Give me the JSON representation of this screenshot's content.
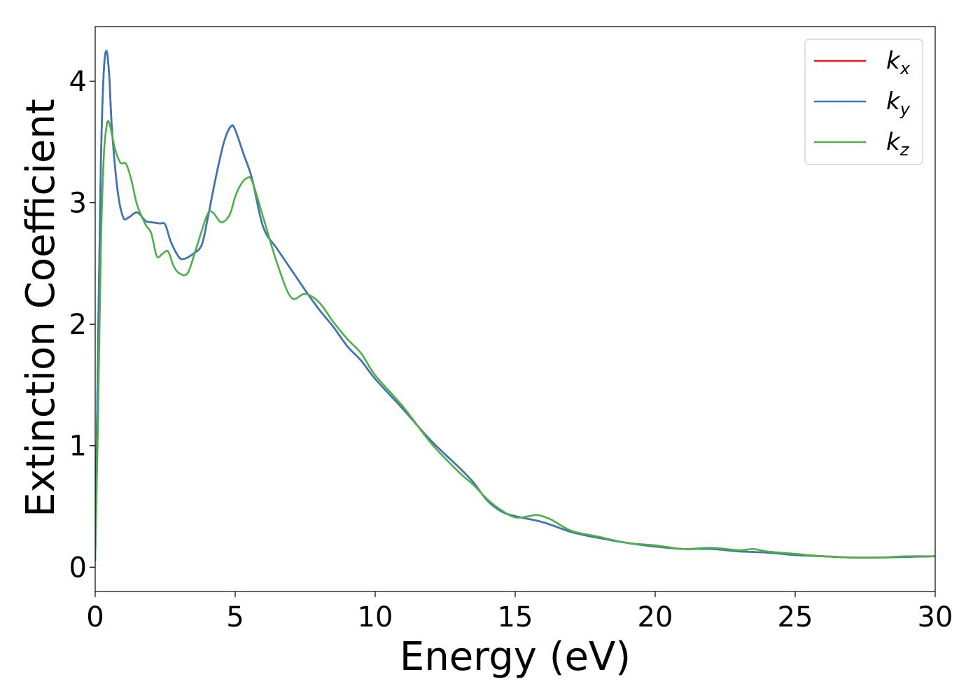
{
  "chart_data": {
    "type": "line",
    "xlabel": "Energy (eV)",
    "ylabel": "Extinction Coefficient",
    "xlim": [
      0,
      30
    ],
    "ylim": [
      -0.2,
      4.45
    ],
    "xticks": [
      "0",
      "5",
      "10",
      "15",
      "20",
      "25",
      "30"
    ],
    "yticks": [
      "0",
      "1",
      "2",
      "3",
      "4"
    ],
    "legend_position": "top-right",
    "grid": false,
    "series": [
      {
        "name": "k",
        "subscript": "x",
        "color": "#e41a1c",
        "x": [
          0,
          0.1,
          0.2,
          0.3,
          0.4,
          0.5,
          0.6,
          0.8,
          1.0,
          1.2,
          1.5,
          1.8,
          2.0,
          2.3,
          2.5,
          2.7,
          3.0,
          3.2,
          3.5,
          3.8,
          4.0,
          4.3,
          4.6,
          4.85,
          5.0,
          5.3,
          5.6,
          6.0,
          6.5,
          7.0,
          7.5,
          8.0,
          8.5,
          9.0,
          9.5,
          10.0,
          11.0,
          12.0,
          13.0,
          13.5,
          14.0,
          14.5,
          15.0,
          16.0,
          17.0,
          18.0,
          19.0,
          20.0,
          21.0,
          22.0,
          23.0,
          24.0,
          25.0,
          26.0,
          27.0,
          28.0,
          29.0,
          30.0
        ],
        "y": [
          0.05,
          1.8,
          3.3,
          4.05,
          4.25,
          4.05,
          3.6,
          3.1,
          2.88,
          2.88,
          2.92,
          2.85,
          2.84,
          2.83,
          2.82,
          2.68,
          2.55,
          2.54,
          2.58,
          2.65,
          2.85,
          3.2,
          3.5,
          3.63,
          3.6,
          3.4,
          3.2,
          2.8,
          2.62,
          2.45,
          2.28,
          2.12,
          1.98,
          1.82,
          1.7,
          1.55,
          1.3,
          1.04,
          0.82,
          0.7,
          0.55,
          0.46,
          0.42,
          0.37,
          0.29,
          0.24,
          0.2,
          0.17,
          0.15,
          0.15,
          0.13,
          0.12,
          0.1,
          0.09,
          0.08,
          0.08,
          0.085,
          0.09
        ]
      },
      {
        "name": "k",
        "subscript": "y",
        "color": "#3a77b8",
        "x": [
          0,
          0.1,
          0.2,
          0.3,
          0.4,
          0.5,
          0.6,
          0.8,
          1.0,
          1.2,
          1.5,
          1.8,
          2.0,
          2.3,
          2.5,
          2.7,
          3.0,
          3.2,
          3.5,
          3.8,
          4.0,
          4.3,
          4.6,
          4.85,
          5.0,
          5.3,
          5.6,
          6.0,
          6.5,
          7.0,
          7.5,
          8.0,
          8.5,
          9.0,
          9.5,
          10.0,
          11.0,
          12.0,
          13.0,
          13.5,
          14.0,
          14.5,
          15.0,
          16.0,
          17.0,
          18.0,
          19.0,
          20.0,
          21.0,
          22.0,
          23.0,
          24.0,
          25.0,
          26.0,
          27.0,
          28.0,
          29.0,
          30.0
        ],
        "y": [
          0.05,
          1.8,
          3.3,
          4.05,
          4.25,
          4.05,
          3.6,
          3.1,
          2.88,
          2.88,
          2.92,
          2.85,
          2.84,
          2.83,
          2.82,
          2.68,
          2.55,
          2.54,
          2.58,
          2.65,
          2.85,
          3.2,
          3.5,
          3.63,
          3.6,
          3.4,
          3.2,
          2.8,
          2.62,
          2.45,
          2.28,
          2.12,
          1.98,
          1.82,
          1.7,
          1.55,
          1.3,
          1.04,
          0.82,
          0.7,
          0.55,
          0.46,
          0.42,
          0.37,
          0.29,
          0.24,
          0.2,
          0.17,
          0.15,
          0.15,
          0.13,
          0.12,
          0.1,
          0.09,
          0.08,
          0.08,
          0.085,
          0.09
        ]
      },
      {
        "name": "k",
        "subscript": "z",
        "color": "#4daf4a",
        "x": [
          0,
          0.1,
          0.2,
          0.3,
          0.4,
          0.5,
          0.7,
          0.9,
          1.1,
          1.3,
          1.5,
          1.8,
          2.0,
          2.2,
          2.4,
          2.6,
          2.8,
          3.0,
          3.3,
          3.6,
          4.0,
          4.2,
          4.5,
          4.8,
          5.0,
          5.2,
          5.4,
          5.6,
          6.0,
          6.5,
          7.0,
          7.5,
          8.0,
          8.5,
          9.0,
          9.5,
          10.0,
          11.0,
          12.0,
          13.0,
          13.5,
          14.0,
          14.5,
          15.0,
          15.5,
          15.8,
          16.3,
          17.0,
          18.0,
          19.0,
          20.0,
          21.0,
          22.0,
          23.0,
          23.5,
          24.0,
          25.0,
          26.0,
          27.0,
          28.0,
          29.0,
          30.0
        ],
        "y": [
          0.05,
          1.2,
          2.6,
          3.35,
          3.62,
          3.66,
          3.45,
          3.33,
          3.32,
          3.18,
          2.98,
          2.82,
          2.75,
          2.56,
          2.58,
          2.6,
          2.48,
          2.42,
          2.42,
          2.62,
          2.9,
          2.92,
          2.84,
          2.9,
          3.05,
          3.15,
          3.2,
          3.18,
          2.88,
          2.5,
          2.22,
          2.25,
          2.18,
          2.02,
          1.88,
          1.76,
          1.58,
          1.32,
          1.02,
          0.78,
          0.68,
          0.56,
          0.47,
          0.41,
          0.42,
          0.43,
          0.39,
          0.3,
          0.25,
          0.2,
          0.18,
          0.15,
          0.16,
          0.14,
          0.15,
          0.13,
          0.11,
          0.09,
          0.08,
          0.08,
          0.09,
          0.09
        ]
      }
    ]
  }
}
